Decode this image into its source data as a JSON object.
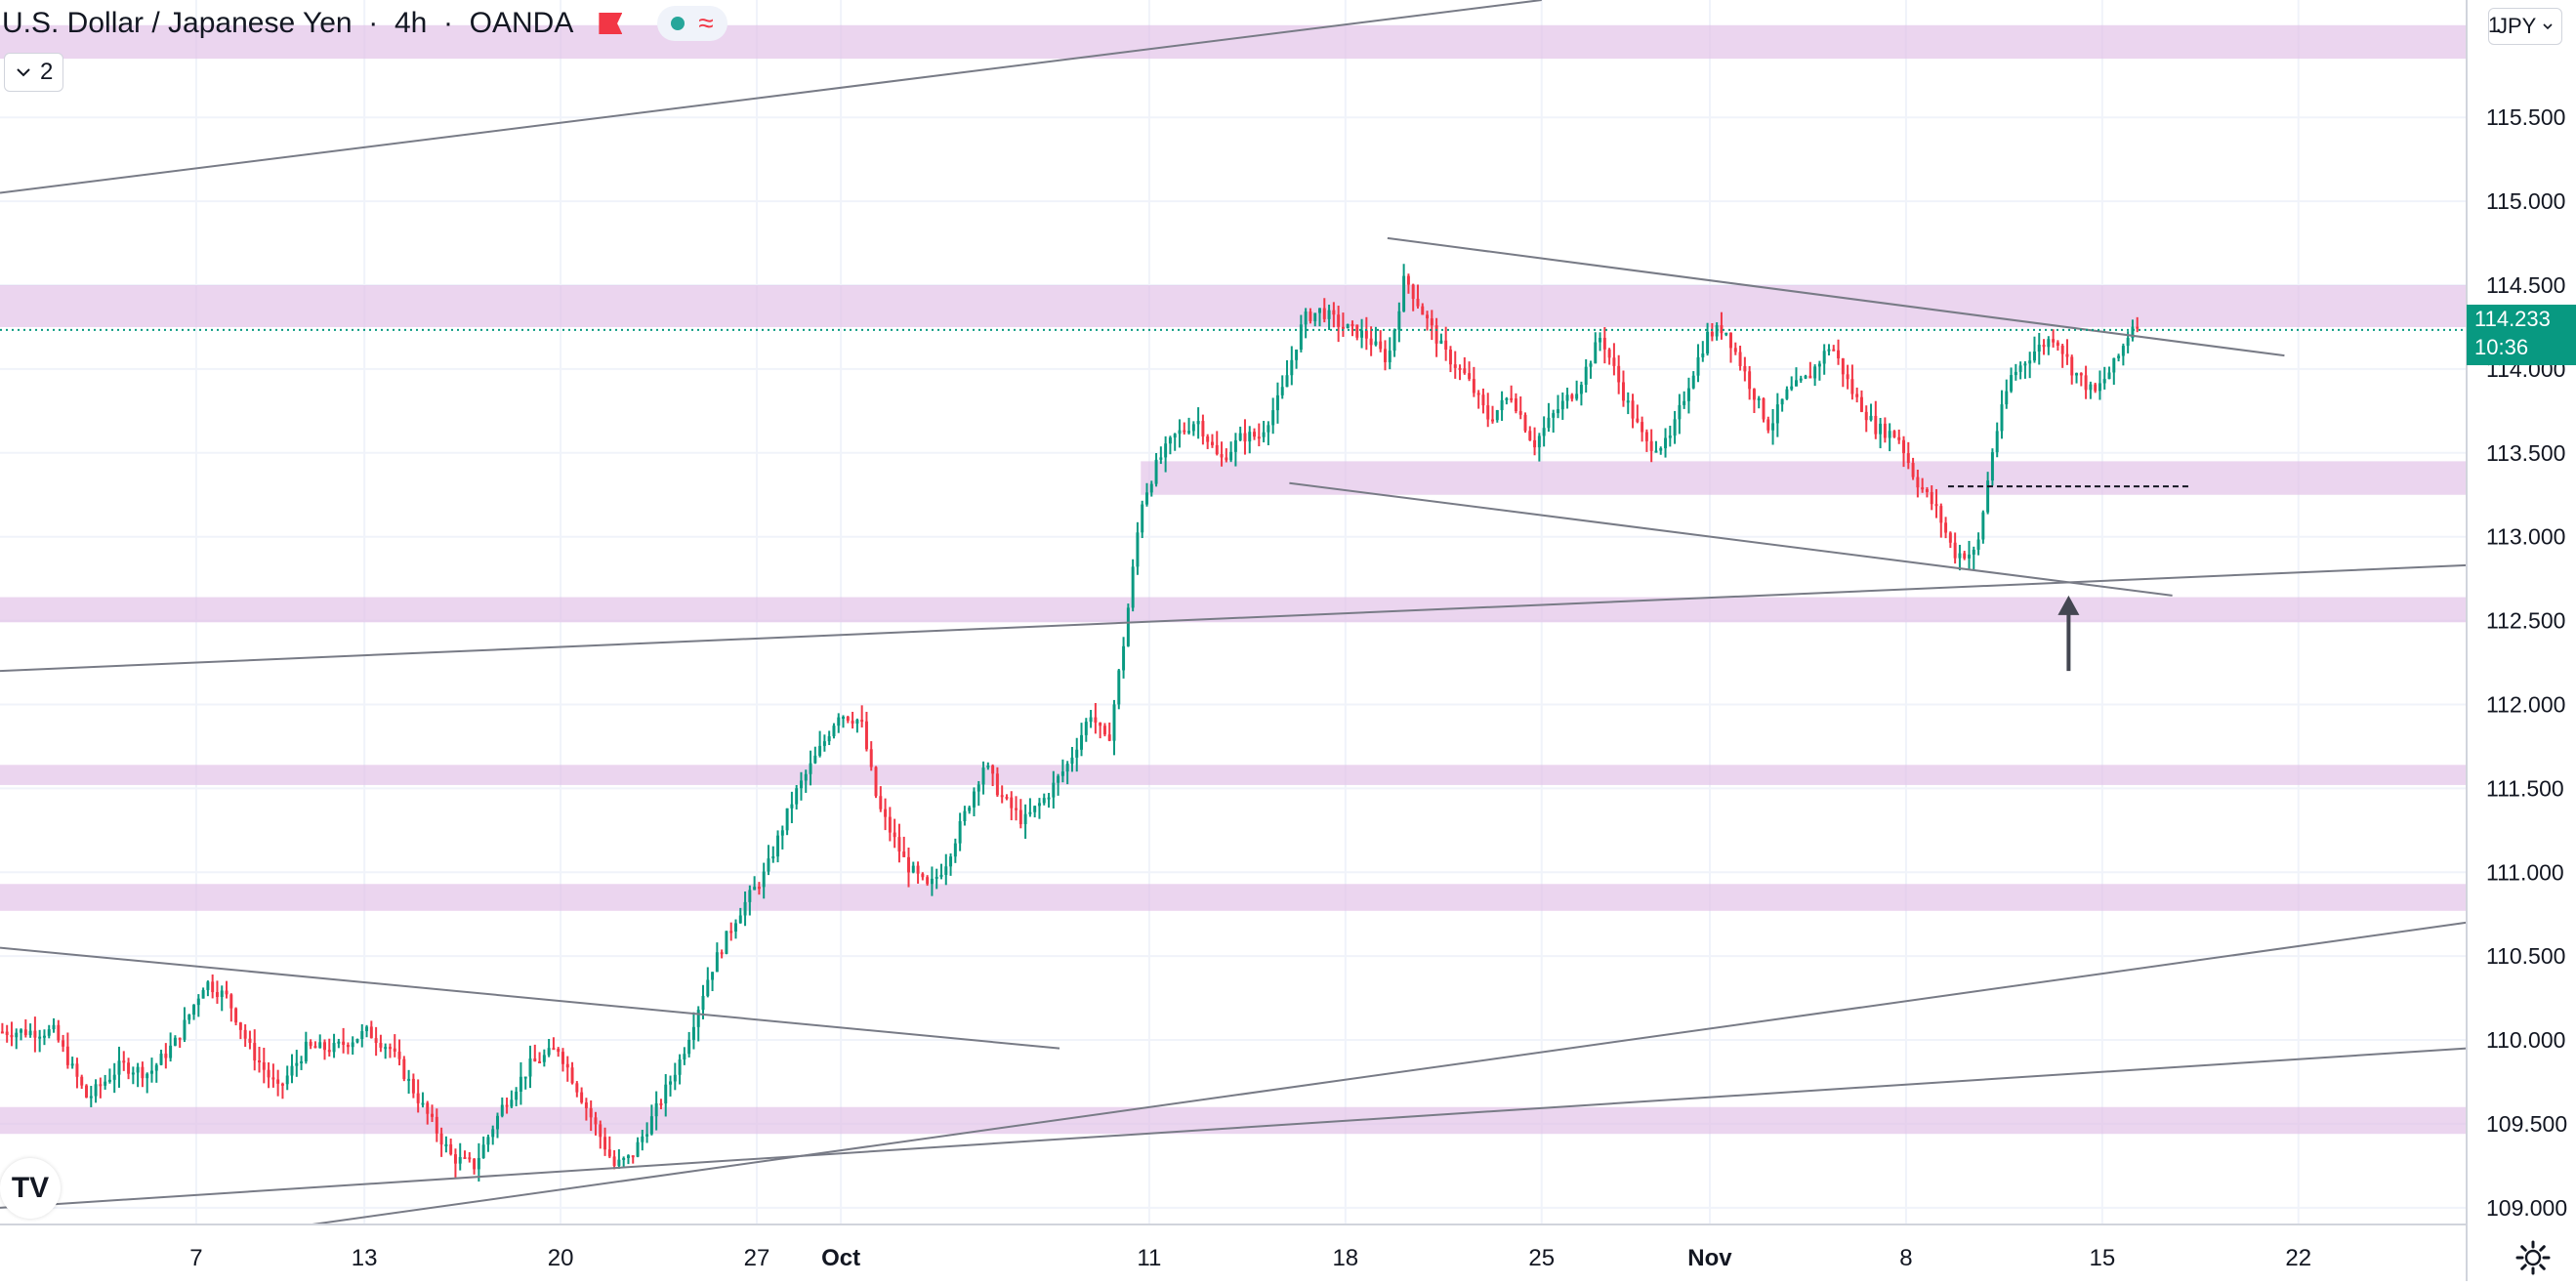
{
  "header": {
    "title": "U.S. Dollar / Japanese Yen",
    "interval": "4h",
    "exchange": "OANDA",
    "indicator_count": "2",
    "currency_lead": "1",
    "currency": "JPY"
  },
  "price_label": {
    "price": "114.233",
    "countdown": "10:36"
  },
  "colors": {
    "up": "#089981",
    "down": "#f23645",
    "zone": "#e1bee7",
    "trendline": "#787b86",
    "axis_text": "#131722",
    "current_price": "#089981"
  },
  "icons": [
    "chevron-down-icon",
    "flag-icon",
    "status-dot-icon",
    "wave-icon",
    "chevron-down-icon",
    "tradingview-logo-icon",
    "gear-icon",
    "arrow-up-icon"
  ],
  "chart_data": {
    "type": "candlestick",
    "title": "U.S. Dollar / Japanese Yen",
    "xlabel": "",
    "ylabel": "",
    "ylim": [
      108.9,
      116.2
    ],
    "grid": true,
    "y_ticks": [
      "115.500",
      "115.000",
      "114.500",
      "114.000",
      "113.500",
      "113.000",
      "112.500",
      "112.000",
      "111.500",
      "111.000",
      "110.500",
      "110.000",
      "109.500",
      "109.000"
    ],
    "x_ticks": [
      {
        "label": "7",
        "x": 7
      },
      {
        "label": "13",
        "x": 13
      },
      {
        "label": "20",
        "x": 20
      },
      {
        "label": "27",
        "x": 27
      },
      {
        "label": "Oct",
        "x": 30
      },
      {
        "label": "11",
        "x": 41
      },
      {
        "label": "18",
        "x": 48
      },
      {
        "label": "25",
        "x": 55
      },
      {
        "label": "Nov",
        "x": 61
      },
      {
        "label": "8",
        "x": 68
      },
      {
        "label": "15",
        "x": 75
      },
      {
        "label": "22",
        "x": 82
      }
    ],
    "x_unit": "days since 31 Aug (Sept 7 = 7, Oct 1 = 30, Nov 1 = 61)",
    "anchors": [
      [
        2.0,
        110.05
      ],
      [
        3.2,
        109.65
      ],
      [
        4.4,
        109.85
      ],
      [
        5.4,
        109.8
      ],
      [
        6.4,
        110.0
      ],
      [
        7.4,
        110.35
      ],
      [
        8.2,
        110.25
      ],
      [
        9.0,
        109.95
      ],
      [
        10.0,
        109.7
      ],
      [
        11.0,
        109.95
      ],
      [
        12.0,
        109.95
      ],
      [
        13.2,
        110.05
      ],
      [
        14.0,
        109.95
      ],
      [
        15.0,
        109.65
      ],
      [
        16.2,
        109.3
      ],
      [
        17.0,
        109.25
      ],
      [
        18.0,
        109.6
      ],
      [
        19.0,
        109.85
      ],
      [
        20.0,
        109.95
      ],
      [
        21.0,
        109.6
      ],
      [
        22.0,
        109.25
      ],
      [
        22.6,
        109.3
      ],
      [
        23.4,
        109.55
      ],
      [
        24.4,
        109.9
      ],
      [
        25.4,
        110.4
      ],
      [
        26.4,
        110.75
      ],
      [
        27.4,
        111.0
      ],
      [
        28.4,
        111.45
      ],
      [
        29.4,
        111.75
      ],
      [
        30.0,
        111.95
      ],
      [
        30.8,
        111.9
      ],
      [
        31.4,
        111.4
      ],
      [
        32.4,
        111.05
      ],
      [
        33.2,
        110.9
      ],
      [
        33.8,
        111.05
      ],
      [
        34.4,
        111.3
      ],
      [
        35.2,
        111.65
      ],
      [
        35.8,
        111.45
      ],
      [
        36.6,
        111.3
      ],
      [
        37.4,
        111.45
      ],
      [
        38.2,
        111.65
      ],
      [
        39.0,
        111.95
      ],
      [
        39.6,
        111.75
      ],
      [
        40.2,
        112.4
      ],
      [
        40.8,
        113.2
      ],
      [
        41.4,
        113.45
      ],
      [
        42.0,
        113.6
      ],
      [
        42.8,
        113.7
      ],
      [
        43.6,
        113.45
      ],
      [
        44.4,
        113.6
      ],
      [
        45.0,
        113.6
      ],
      [
        45.8,
        113.85
      ],
      [
        46.6,
        114.3
      ],
      [
        47.2,
        114.35
      ],
      [
        48.0,
        114.25
      ],
      [
        48.8,
        114.2
      ],
      [
        49.6,
        114.05
      ],
      [
        50.2,
        114.55
      ],
      [
        50.8,
        114.35
      ],
      [
        51.6,
        114.1
      ],
      [
        52.4,
        113.95
      ],
      [
        53.2,
        113.7
      ],
      [
        54.0,
        113.85
      ],
      [
        54.8,
        113.55
      ],
      [
        55.6,
        113.75
      ],
      [
        56.4,
        113.9
      ],
      [
        57.2,
        114.2
      ],
      [
        58.0,
        113.85
      ],
      [
        58.8,
        113.55
      ],
      [
        59.6,
        113.55
      ],
      [
        60.4,
        113.95
      ],
      [
        61.0,
        114.2
      ],
      [
        61.6,
        114.25
      ],
      [
        62.4,
        113.95
      ],
      [
        63.2,
        113.65
      ],
      [
        63.8,
        113.85
      ],
      [
        64.6,
        113.95
      ],
      [
        65.4,
        114.15
      ],
      [
        66.2,
        113.85
      ],
      [
        67.0,
        113.65
      ],
      [
        67.8,
        113.6
      ],
      [
        68.4,
        113.35
      ],
      [
        69.2,
        113.15
      ],
      [
        69.8,
        112.9
      ],
      [
        70.6,
        112.9
      ],
      [
        71.2,
        113.55
      ],
      [
        71.8,
        113.95
      ],
      [
        72.6,
        114.1
      ],
      [
        73.4,
        114.2
      ],
      [
        74.0,
        114.0
      ],
      [
        74.8,
        113.85
      ],
      [
        75.6,
        114.05
      ],
      [
        76.2,
        114.28
      ]
    ],
    "wick_ranges": [
      [
        109.1,
        114.73
      ]
    ],
    "last_price": 114.233,
    "zones": [
      {
        "from": 115.85,
        "to": 116.05,
        "x_start": 0,
        "x_end": 88
      },
      {
        "from": 114.25,
        "to": 114.5,
        "x_start": 0,
        "x_end": 88
      },
      {
        "from": 113.25,
        "to": 113.45,
        "x_start": 40.7,
        "x_end": 88
      },
      {
        "from": 112.49,
        "to": 112.64,
        "x_start": 0,
        "x_end": 88
      },
      {
        "from": 111.52,
        "to": 111.64,
        "x_start": 0,
        "x_end": 88
      },
      {
        "from": 110.77,
        "to": 110.93,
        "x_start": 0,
        "x_end": 88
      },
      {
        "from": 109.44,
        "to": 109.6,
        "x_start": 0,
        "x_end": 88
      }
    ],
    "trendlines": [
      {
        "x1": 0.0,
        "y1": 115.05,
        "x2": 55.0,
        "y2": 116.2
      },
      {
        "x1": 0.0,
        "y1": 112.2,
        "x2": 88.0,
        "y2": 112.83
      },
      {
        "x1": 49.5,
        "y1": 114.78,
        "x2": 81.5,
        "y2": 114.08
      },
      {
        "x1": 46.0,
        "y1": 113.32,
        "x2": 77.5,
        "y2": 112.65
      },
      {
        "x1": 0.0,
        "y1": 110.55,
        "x2": 37.8,
        "y2": 109.95
      },
      {
        "x1": 0.0,
        "y1": 109.0,
        "x2": 88.0,
        "y2": 109.95
      },
      {
        "x1": 9.0,
        "y1": 108.85,
        "x2": 88.0,
        "y2": 110.7
      }
    ],
    "dashed_lines": [
      {
        "y": 113.3,
        "x_start": 69.5,
        "x_end": 78.2
      }
    ],
    "arrow": {
      "x": 73.8,
      "y_tail": 112.2,
      "y_head": 112.65
    }
  }
}
